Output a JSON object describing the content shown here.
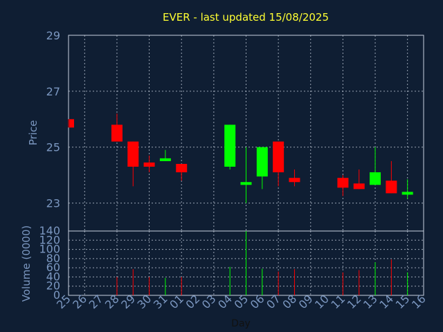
{
  "chart_data": {
    "type": "candlestick",
    "title": "EVER - last updated 15/08/2025",
    "xlabel": "Day",
    "price_axis": {
      "ylabel": "Price",
      "ylim": [
        22,
        29
      ],
      "ticks": [
        23,
        25,
        27,
        29
      ]
    },
    "volume_axis": {
      "ylabel": "Volume (0000)",
      "ylim": [
        0,
        140
      ],
      "ticks": [
        0,
        20,
        40,
        60,
        80,
        100,
        120,
        140
      ]
    },
    "grid": true,
    "colors": {
      "up": "#00ff00",
      "down": "#ff0000",
      "background": "#0f1e33",
      "plot_bg": "#0f1e33",
      "title": "#ffff33",
      "axis_text": "#7b97c0",
      "grid": "#c9d2e0"
    },
    "x_ticks": [
      "25",
      "26",
      "27",
      "28",
      "29",
      "30",
      "31",
      "01",
      "02",
      "03",
      "04",
      "05",
      "06",
      "07",
      "08",
      "09",
      "10",
      "11",
      "12",
      "13",
      "14",
      "15",
      "16"
    ],
    "candles": [
      {
        "x": "25",
        "open": 26.0,
        "close": 25.7,
        "high": 26.0,
        "low": 25.7,
        "volume": 0
      },
      {
        "x": "28",
        "open": 25.8,
        "close": 25.2,
        "high": 26.2,
        "low": 25.2,
        "volume": 40
      },
      {
        "x": "29",
        "open": 25.2,
        "close": 24.3,
        "high": 25.2,
        "low": 23.6,
        "volume": 57
      },
      {
        "x": "30",
        "open": 24.45,
        "close": 24.3,
        "high": 24.7,
        "low": 24.1,
        "volume": 40
      },
      {
        "x": "31",
        "open": 24.5,
        "close": 24.6,
        "high": 24.9,
        "low": 24.5,
        "volume": 38
      },
      {
        "x": "01",
        "open": 24.4,
        "close": 24.1,
        "high": 24.4,
        "low": 23.8,
        "volume": 40
      },
      {
        "x": "04",
        "open": 24.3,
        "close": 25.8,
        "high": 25.8,
        "low": 24.2,
        "volume": 62
      },
      {
        "x": "05",
        "open": 23.65,
        "close": 23.75,
        "high": 25.0,
        "low": 23.0,
        "volume": 140
      },
      {
        "x": "06",
        "open": 23.95,
        "close": 25.0,
        "high": 25.0,
        "low": 23.5,
        "volume": 58
      },
      {
        "x": "07",
        "open": 25.2,
        "close": 24.1,
        "high": 25.2,
        "low": 23.6,
        "volume": 52
      },
      {
        "x": "08",
        "open": 23.9,
        "close": 23.75,
        "high": 24.2,
        "low": 23.6,
        "volume": 57
      },
      {
        "x": "11",
        "open": 23.9,
        "close": 23.55,
        "high": 24.0,
        "low": 23.25,
        "volume": 50
      },
      {
        "x": "12",
        "open": 23.7,
        "close": 23.5,
        "high": 24.2,
        "low": 23.5,
        "volume": 55
      },
      {
        "x": "13",
        "open": 23.65,
        "close": 24.1,
        "high": 25.0,
        "low": 23.65,
        "volume": 72
      },
      {
        "x": "14",
        "open": 23.8,
        "close": 23.35,
        "high": 24.5,
        "low": 23.35,
        "volume": 78
      },
      {
        "x": "15",
        "open": 23.3,
        "close": 23.4,
        "high": 23.85,
        "low": 23.15,
        "volume": 50
      }
    ]
  }
}
